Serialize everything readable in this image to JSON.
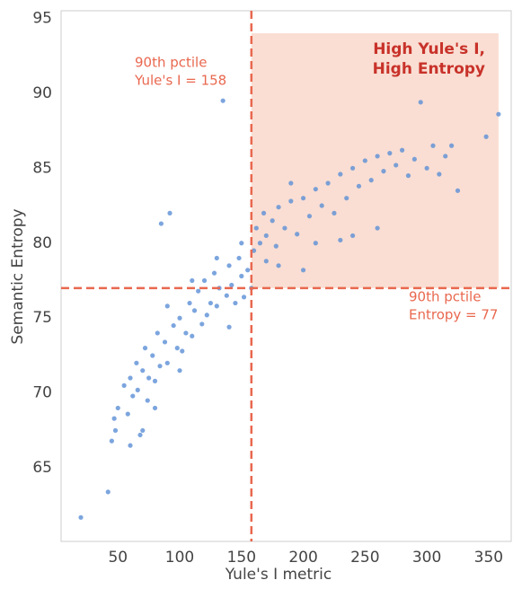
{
  "chart_data": {
    "type": "scatter",
    "x_label": "Yule's I metric",
    "y_label": "Semantic Entropy",
    "color": "#5b8fd6",
    "xlim": [
      4,
      369
    ],
    "ylim": [
      60.1,
      95.5
    ],
    "xticks": [
      50,
      100,
      150,
      200,
      250,
      300,
      350
    ],
    "yticks": [
      65,
      70,
      75,
      80,
      85,
      90,
      95
    ],
    "grid": false,
    "reference_lines": [
      {
        "axis": "x",
        "value": 158,
        "color": "#e9684f",
        "label": [
          "90th pctile",
          "Yule's I = 158"
        ]
      },
      {
        "axis": "y",
        "value": 77,
        "color": "#e9684f",
        "label": [
          "90th pctile",
          "Entropy = 77"
        ]
      }
    ],
    "highlight": {
      "xlim": [
        158,
        358
      ],
      "ylim": [
        77,
        94
      ],
      "color": "#f9d6c8",
      "label_color": "#c8322a",
      "label": [
        "High Yule's I,",
        "High Entropy"
      ]
    },
    "x": [
      20,
      42,
      45,
      47,
      48,
      50,
      55,
      58,
      60,
      62,
      65,
      66,
      68,
      70,
      72,
      74,
      75,
      78,
      80,
      82,
      84,
      85,
      88,
      90,
      92,
      95,
      98,
      100,
      102,
      105,
      108,
      110,
      112,
      115,
      118,
      120,
      122,
      125,
      128,
      130,
      132,
      135,
      138,
      140,
      142,
      145,
      148,
      150,
      152,
      155,
      158,
      160,
      162,
      165,
      168,
      170,
      175,
      178,
      180,
      185,
      190,
      195,
      200,
      205,
      210,
      215,
      220,
      225,
      230,
      235,
      240,
      245,
      250,
      255,
      260,
      265,
      270,
      275,
      280,
      285,
      290,
      295,
      300,
      305,
      310,
      315,
      320,
      325,
      348,
      358,
      240,
      260,
      230,
      200,
      180,
      140,
      100,
      80,
      70,
      60,
      90,
      110,
      130,
      210,
      190,
      150,
      170
    ],
    "values": [
      61.7,
      63.4,
      66.8,
      68.3,
      67.5,
      69,
      70.5,
      68.6,
      71,
      69.8,
      72,
      70.2,
      67.2,
      71.5,
      73,
      69.5,
      71,
      72.5,
      70.8,
      74,
      71.8,
      81.3,
      73.4,
      72,
      82,
      74.5,
      73,
      75,
      72.8,
      74,
      76,
      73.8,
      75.5,
      76.8,
      74.6,
      77.5,
      75.2,
      76,
      78,
      75.8,
      77,
      89.5,
      76.5,
      78.5,
      77.2,
      76,
      79,
      77.8,
      76.4,
      78.2,
      77,
      79.5,
      81,
      80,
      82,
      80.5,
      81.5,
      79.8,
      82.4,
      81,
      82.8,
      80.6,
      83,
      81.8,
      83.6,
      82.5,
      84,
      82,
      84.6,
      83,
      85,
      83.8,
      85.5,
      84.2,
      85.8,
      84.8,
      86,
      85.2,
      86.2,
      84.5,
      85.6,
      89.4,
      85,
      86.5,
      84.6,
      85.8,
      86.5,
      83.5,
      87.1,
      88.6,
      80.5,
      81,
      80.2,
      78.2,
      78.5,
      74.4,
      71.5,
      69,
      67.5,
      66.5,
      75.8,
      77.5,
      79,
      80,
      84,
      80,
      78.8
    ]
  }
}
